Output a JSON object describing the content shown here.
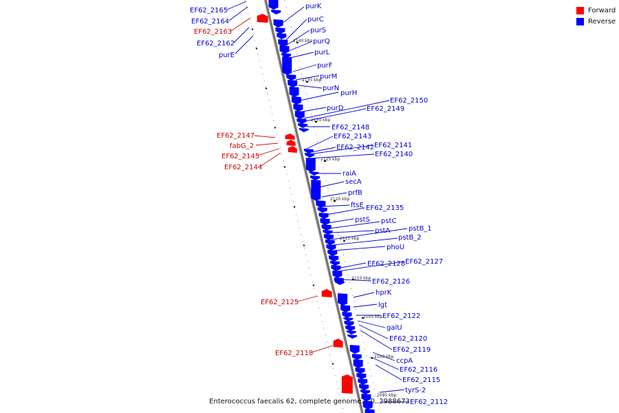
{
  "legend": {
    "forward_label": "Forward",
    "reverse_label": "Reverse",
    "forward_color": "#ff0000",
    "reverse_color": "#0000ff"
  },
  "caption": "Enterococcus faecalis 62, complete genome. - 0..2988673",
  "colors": {
    "forward": "#ff0000",
    "reverse": "#0000ff",
    "backbone": "#808080"
  },
  "ticks": [
    "2140 kbp",
    "2135 kbp",
    "2130 kbp",
    "2125 kbp",
    "2120 kbp",
    "2115 kbp",
    "2110 kbp",
    "2105 kbp",
    "2100 kbp",
    "2095 kbp"
  ],
  "reverse_labels": [
    "purK",
    "purC",
    "purS",
    "purQ",
    "purL",
    "purF",
    "purM",
    "purN",
    "purH",
    "purD",
    "EF62_2150",
    "EF62_2149",
    "EF62_2148",
    "EF62_2143",
    "EF62_2142",
    "EF62_2141",
    "EF62_2140",
    "raiA",
    "secA",
    "prfB",
    "ftsE",
    "EF62_2135",
    "pstS",
    "pstC",
    "pstA",
    "pstB_1",
    "pstB_2",
    "phoU",
    "EF62_2128",
    "EF62_2127",
    "EF62_2126",
    "hprK",
    "lgt",
    "EF62_2122",
    "galU",
    "EF62_2120",
    "EF62_2119",
    "ccpA",
    "EF62_2116",
    "EF62_2115",
    "tyrS-2",
    "EF62_2112"
  ],
  "left_labels": [
    "EF62_2165",
    "EF62_2164",
    "EF62_2163",
    "EF62_2162",
    "purE",
    "EF62_2147",
    "fabG_2",
    "EF62_2145",
    "EF62_2144",
    "EF62_2125",
    "EF62_2118"
  ]
}
